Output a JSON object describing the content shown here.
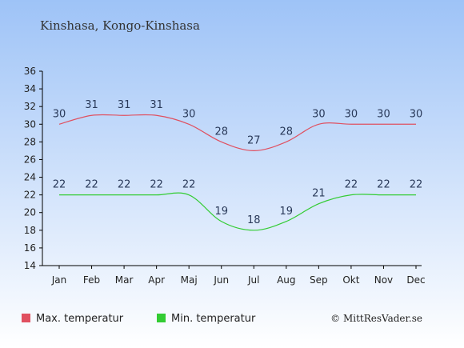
{
  "chart_data": {
    "type": "line",
    "title": "Kinshasa, Kongo-Kinshasa",
    "categories": [
      "Jan",
      "Feb",
      "Mar",
      "Apr",
      "Maj",
      "Jun",
      "Jul",
      "Aug",
      "Sep",
      "Okt",
      "Nov",
      "Dec"
    ],
    "series": [
      {
        "name": "Max. temperatur",
        "color": "#e05060",
        "values": [
          30,
          31,
          31,
          31,
          30,
          28,
          27,
          28,
          30,
          30,
          30,
          30
        ]
      },
      {
        "name": "Min. temperatur",
        "color": "#33cc33",
        "values": [
          22,
          22,
          22,
          22,
          22,
          19,
          18,
          19,
          21,
          22,
          22,
          22
        ]
      }
    ],
    "ylim": [
      14,
      36
    ],
    "yticks": [
      14,
      16,
      18,
      20,
      22,
      24,
      26,
      28,
      30,
      32,
      34,
      36
    ],
    "grid": false,
    "legend_position": "bottom-left",
    "background": {
      "top": "#9ec3f7",
      "bottom": "#ffffff"
    }
  },
  "credit": "© MittResVader.se"
}
